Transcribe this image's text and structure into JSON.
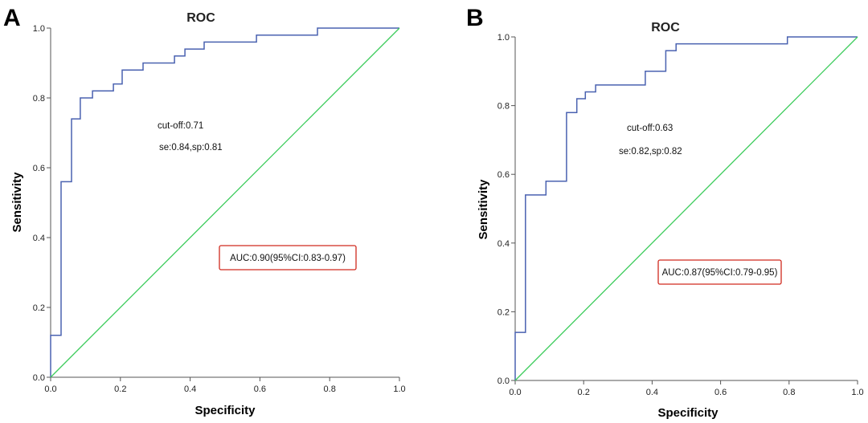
{
  "chart_data": [
    {
      "panel": "A",
      "type": "line",
      "title": "ROC",
      "xlabel": "Specificity",
      "ylabel": "Sensitivity",
      "xlim": [
        0,
        1
      ],
      "ylim": [
        0,
        1
      ],
      "xticks": [
        "0.0",
        "0.2",
        "0.4",
        "0.6",
        "0.8",
        "1.0"
      ],
      "yticks": [
        "0.0",
        "0.2",
        "0.4",
        "0.6",
        "0.8",
        "1.0"
      ],
      "grid": false,
      "annotations": [
        "cut-off:0.71",
        "se:0.84,sp:0.81"
      ],
      "auc_box": "AUC:0.90(95%CI:0.83-0.97)",
      "series": [
        {
          "color": "#4a62b0",
          "step": true,
          "x": [
            0.0,
            0.0,
            0.03,
            0.03,
            0.03,
            0.03,
            0.06,
            0.06,
            0.085,
            0.085,
            0.12,
            0.12,
            0.18,
            0.18,
            0.205,
            0.205,
            0.265,
            0.265,
            0.355,
            0.355,
            0.385,
            0.385,
            0.44,
            0.44,
            0.59,
            0.59,
            0.765,
            0.765,
            1.0
          ],
          "y": [
            0.0,
            0.12,
            0.12,
            0.35,
            0.35,
            0.56,
            0.56,
            0.74,
            0.74,
            0.8,
            0.8,
            0.82,
            0.82,
            0.84,
            0.84,
            0.88,
            0.88,
            0.9,
            0.9,
            0.92,
            0.92,
            0.94,
            0.94,
            0.96,
            0.96,
            0.98,
            0.98,
            1.0,
            1.0
          ]
        },
        {
          "color": "#3dcc5c",
          "step": false,
          "x": [
            0.0,
            1.0
          ],
          "y": [
            0.0,
            1.0
          ]
        }
      ]
    },
    {
      "panel": "B",
      "type": "line",
      "title": "ROC",
      "xlabel": "Specificity",
      "ylabel": "Sensitivity",
      "xlim": [
        0,
        1
      ],
      "ylim": [
        0,
        1
      ],
      "xticks": [
        "0.0",
        "0.2",
        "0.4",
        "0.6",
        "0.8",
        "1.0"
      ],
      "yticks": [
        "0.0",
        "0.2",
        "0.4",
        "0.6",
        "0.8",
        "1.0"
      ],
      "grid": false,
      "annotations": [
        "cut-off:0.63",
        "se:0.82,sp:0.82"
      ],
      "auc_box": "AUC:0.87(95%CI:0.79-0.95)",
      "series": [
        {
          "color": "#4a62b0",
          "step": true,
          "x": [
            0.0,
            0.0,
            0.03,
            0.03,
            0.09,
            0.09,
            0.15,
            0.15,
            0.18,
            0.18,
            0.205,
            0.205,
            0.235,
            0.235,
            0.38,
            0.38,
            0.44,
            0.44,
            0.47,
            0.47,
            0.795,
            0.795,
            1.0
          ],
          "y": [
            0.0,
            0.14,
            0.14,
            0.54,
            0.54,
            0.58,
            0.58,
            0.78,
            0.78,
            0.82,
            0.82,
            0.84,
            0.84,
            0.86,
            0.86,
            0.9,
            0.9,
            0.96,
            0.96,
            0.98,
            0.98,
            1.0,
            1.0
          ]
        },
        {
          "color": "#3dcc5c",
          "step": false,
          "x": [
            0.0,
            1.0
          ],
          "y": [
            0.0,
            1.0
          ]
        }
      ]
    }
  ],
  "colors": {
    "roc_line": "#4a62b0",
    "reference_line": "#3dcc5c",
    "auc_box_border": "#d0291e"
  }
}
